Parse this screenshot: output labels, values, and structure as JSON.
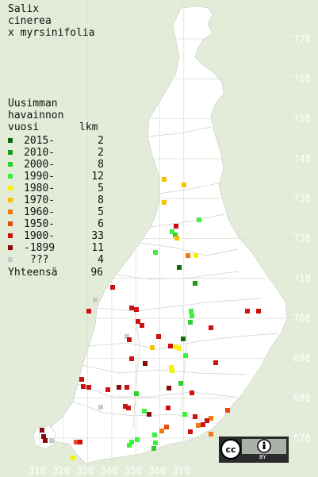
{
  "title": [
    "Salix",
    "cinerea",
    "x myrsinifolia"
  ],
  "legend": {
    "header": [
      "Uusimman",
      "havainnon"
    ],
    "col_year": "vuosi",
    "col_count": "lkm",
    "rows": [
      {
        "label": "2015-",
        "count": "2",
        "color": "#0c6b12"
      },
      {
        "label": "2010-",
        "count": "2",
        "color": "#1a9a1a"
      },
      {
        "label": "2000-",
        "count": "8",
        "color": "#2fcf2f"
      },
      {
        "label": "1990-",
        "count": "12",
        "color": "#3df23d"
      },
      {
        "label": "1980-",
        "count": "5",
        "color": "#f3f300"
      },
      {
        "label": "1970-",
        "count": "8",
        "color": "#f2c200"
      },
      {
        "label": "1960-",
        "count": "5",
        "color": "#ef7a12"
      },
      {
        "label": "1950-",
        "count": "6",
        "color": "#e84b10"
      },
      {
        "label": "1900-",
        "count": "33",
        "color": "#cc1111"
      },
      {
        "label": "-1899",
        "count": "11",
        "color": "#8a0a0a"
      },
      {
        "label": "???",
        "count": "4",
        "color": "#c8c8c8"
      }
    ],
    "total_label": "Yhteensä",
    "total_count": "96"
  },
  "grid": {
    "x_labels": [
      "310",
      "320",
      "330",
      "340",
      "350",
      "360",
      "370"
    ],
    "y_labels": [
      "770",
      "760",
      "750",
      "740",
      "730",
      "720",
      "710",
      "700",
      "690",
      "680",
      "670"
    ]
  },
  "license": {
    "text": "BY",
    "badge": "CC BY"
  },
  "colors": {
    "background": "#e3ecd9",
    "land": "#ffffff",
    "grid": "#d9ddd0"
  }
}
